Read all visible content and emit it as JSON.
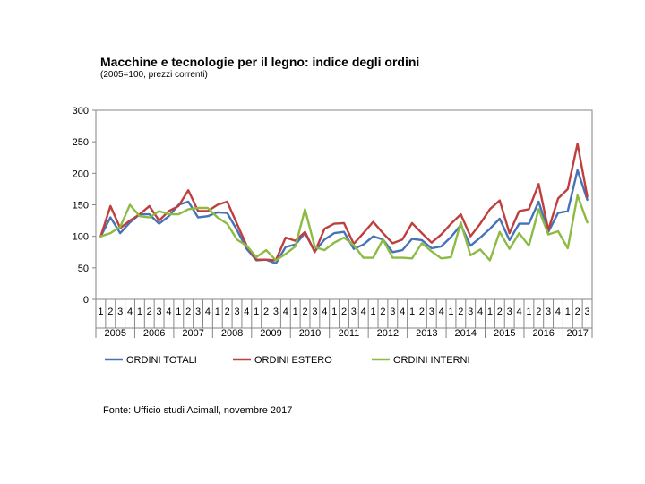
{
  "title": "Macchine e tecnologie per il legno: indice degli ordini",
  "subtitle": "(2005=100, prezzi correnti)",
  "source": "Fonte: Ufficio studi Acimall, novembre 2017",
  "chart_data": {
    "type": "line",
    "title": "Macchine e tecnologie per il legno: indice degli ordini",
    "subtitle": "(2005=100, prezzi correnti)",
    "xlabel": "",
    "ylabel": "",
    "ylim": [
      0,
      300
    ],
    "yticks": [
      "0",
      "50",
      "100",
      "150",
      "200",
      "250",
      "300"
    ],
    "grid": false,
    "legend_position": "bottom",
    "quarter_labels": [
      "1",
      "2",
      "3",
      "4",
      "1",
      "2",
      "3",
      "4",
      "1",
      "2",
      "3",
      "4",
      "1",
      "2",
      "3",
      "4",
      "1",
      "2",
      "3",
      "4",
      "1",
      "2",
      "3",
      "4",
      "1",
      "2",
      "3",
      "4",
      "1",
      "2",
      "3",
      "4",
      "1",
      "2",
      "3",
      "4",
      "1",
      "2",
      "3",
      "4",
      "1",
      "2",
      "3",
      "4",
      "1",
      "2",
      "3",
      "4",
      "1",
      "2",
      "3"
    ],
    "years": [
      {
        "label": "2005",
        "quarters": 4
      },
      {
        "label": "2006",
        "quarters": 4
      },
      {
        "label": "2007",
        "quarters": 4
      },
      {
        "label": "2008",
        "quarters": 4
      },
      {
        "label": "2009",
        "quarters": 4
      },
      {
        "label": "2010",
        "quarters": 4
      },
      {
        "label": "2011",
        "quarters": 4
      },
      {
        "label": "2012",
        "quarters": 4
      },
      {
        "label": "2013",
        "quarters": 4
      },
      {
        "label": "2014",
        "quarters": 4
      },
      {
        "label": "2015",
        "quarters": 4
      },
      {
        "label": "2016",
        "quarters": 4
      },
      {
        "label": "2017",
        "quarters": 3
      }
    ],
    "series": [
      {
        "name": "ORDINI TOTALI",
        "color": "#4573b8",
        "values": [
          100,
          130,
          105,
          122,
          135,
          135,
          120,
          132,
          150,
          155,
          130,
          132,
          138,
          137,
          110,
          80,
          62,
          63,
          57,
          83,
          87,
          105,
          76,
          95,
          105,
          107,
          80,
          87,
          100,
          95,
          75,
          78,
          96,
          94,
          81,
          84,
          99,
          118,
          85,
          98,
          112,
          128,
          94,
          120,
          120,
          155,
          107,
          137,
          140,
          205,
          158
        ]
      },
      {
        "name": "ORDINI ESTERO",
        "color": "#bf3f3e",
        "values": [
          100,
          148,
          113,
          125,
          135,
          148,
          125,
          140,
          148,
          173,
          140,
          140,
          150,
          155,
          120,
          85,
          63,
          63,
          62,
          98,
          93,
          107,
          75,
          112,
          120,
          121,
          88,
          105,
          123,
          105,
          89,
          95,
          121,
          105,
          90,
          103,
          120,
          135,
          100,
          120,
          143,
          157,
          105,
          140,
          143,
          183,
          110,
          160,
          175,
          247,
          163
        ]
      },
      {
        "name": "ORDINI INTERNI",
        "color": "#8cbb44",
        "values": [
          100,
          105,
          115,
          150,
          132,
          130,
          140,
          135,
          135,
          143,
          145,
          145,
          130,
          120,
          95,
          85,
          67,
          78,
          62,
          72,
          84,
          143,
          83,
          78,
          90,
          98,
          86,
          66,
          66,
          95,
          66,
          66,
          65,
          89,
          76,
          65,
          67,
          122,
          70,
          79,
          62,
          107,
          80,
          105,
          85,
          143,
          103,
          108,
          81,
          165,
          122
        ]
      }
    ]
  }
}
